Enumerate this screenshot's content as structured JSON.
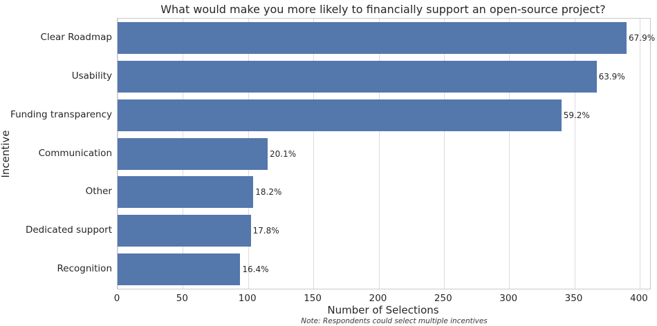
{
  "chart_data": {
    "type": "bar",
    "orientation": "horizontal",
    "title": "What would make you more likely to financially support an open-source project?",
    "xlabel": "Number of Selections",
    "ylabel": "Incentive",
    "footnote": "Note: Respondents could select multiple incentives",
    "categories": [
      "Clear Roadmap",
      "Usability",
      "Funding transparency",
      "Communication",
      "Other",
      "Dedicated support",
      "Recognition"
    ],
    "values": [
      390,
      367,
      340,
      115,
      104,
      102,
      94
    ],
    "value_labels": [
      "67.9%",
      "63.9%",
      "59.2%",
      "20.1%",
      "18.2%",
      "17.8%",
      "16.4%"
    ],
    "xticks": [
      0,
      50,
      100,
      150,
      200,
      250,
      300,
      350,
      400
    ],
    "xlim": [
      0,
      408
    ],
    "grid": true,
    "legend": false,
    "bar_color": "#5477ac",
    "gridline_color": "#dcdcdc",
    "spine_color": "#c9c9c9",
    "text_color": "#262626"
  }
}
